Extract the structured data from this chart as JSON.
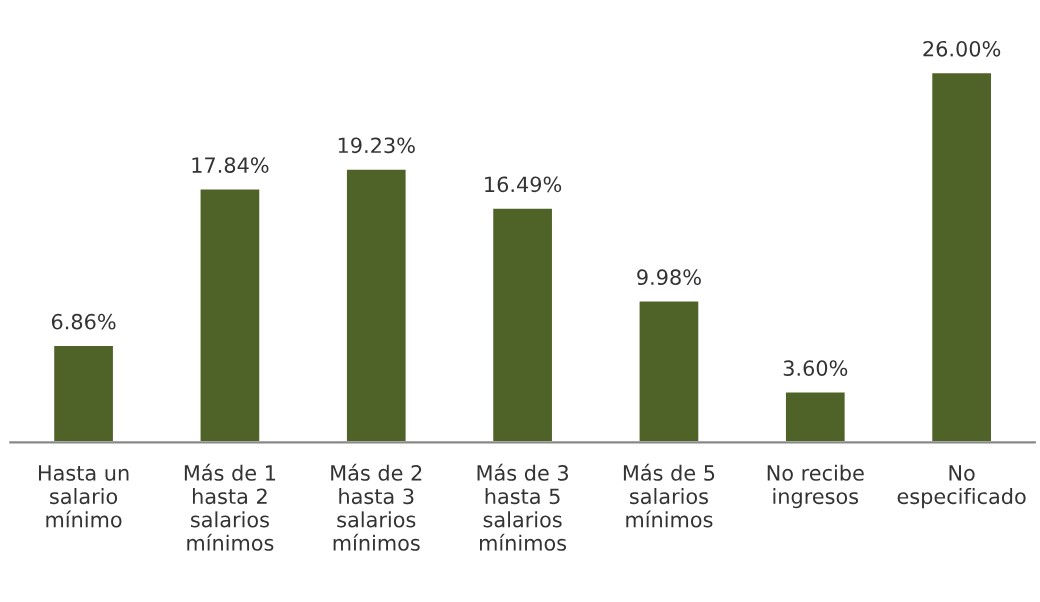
{
  "chart_data": {
    "type": "bar",
    "categories": [
      "Hasta un\nsalario\nmínimo",
      "Más de 1\nhasta 2\nsalarios\nmínimos",
      "Más de 2\nhasta 3\nsalarios\nmínimos",
      "Más de 3\nhasta 5\nsalarios\nmínimos",
      "Más de 5\nsalarios\nmínimos",
      "No recibe\ningresos",
      "No\nespecificado"
    ],
    "values": [
      6.86,
      17.84,
      19.23,
      16.49,
      9.98,
      3.6,
      26.0
    ],
    "value_labels": [
      "6.86%",
      "17.84%",
      "19.23%",
      "16.49%",
      "9.98%",
      "3.60%",
      "26.00%"
    ],
    "color": "#4f6228",
    "grid": false,
    "legend": false
  }
}
